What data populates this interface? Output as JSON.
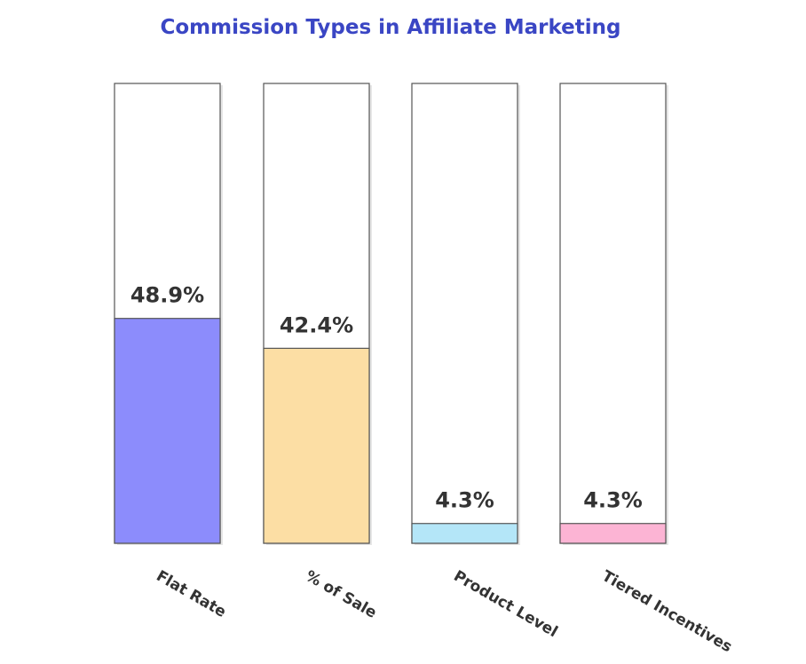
{
  "chart_data": {
    "type": "bar",
    "title": "Commission Types in Affiliate Marketing",
    "xlabel": "",
    "ylabel": "",
    "categories": [
      "Flat Rate",
      "% of Sale",
      "Product Level",
      "Tiered Incentives"
    ],
    "values": [
      48.9,
      42.4,
      4.3,
      4.3
    ],
    "value_labels": [
      "48.9%",
      "42.4%",
      "4.3%",
      "4.3%"
    ],
    "ylim": [
      0,
      100
    ],
    "grid": false,
    "legend": "none",
    "colors": [
      "#8c8cfc",
      "#fcdea4",
      "#b4e6f8",
      "#fcb4d4"
    ],
    "track_color": "#ffffff",
    "border_color": "#555555"
  }
}
